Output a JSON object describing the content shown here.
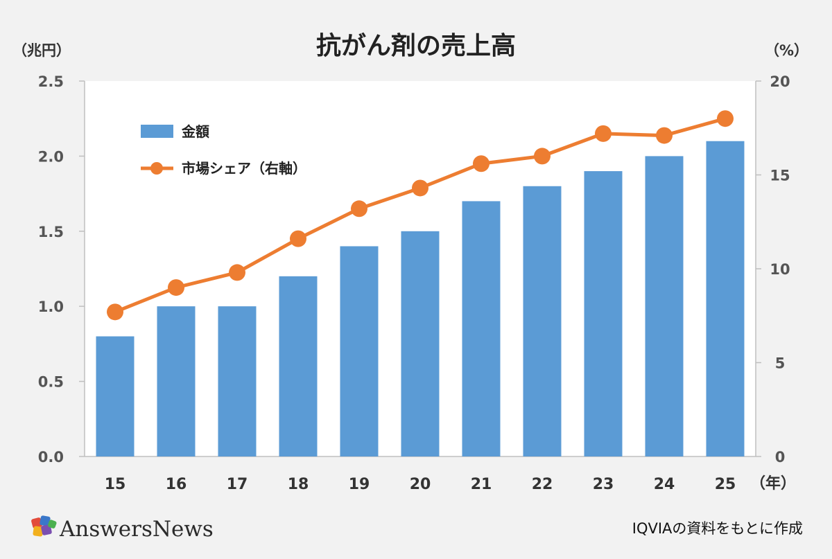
{
  "title": "抗がん剤の売上高",
  "left_unit": "（兆円）",
  "right_unit": "（%）",
  "x_unit": "（年）",
  "brand": "AnswersNews",
  "source": "IQVIAの資料をもとに作成",
  "colors": {
    "bar": "#5b9bd5",
    "line": "#ed7d31",
    "plot_bg": "#ffffff",
    "page_bg": "#f2f2f2"
  },
  "chart_data": {
    "type": "bar",
    "categories": [
      "15",
      "16",
      "17",
      "18",
      "19",
      "20",
      "21",
      "22",
      "23",
      "24",
      "25"
    ],
    "series": [
      {
        "name": "金額",
        "type": "bar",
        "axis": "left",
        "values": [
          0.8,
          1.0,
          1.0,
          1.2,
          1.4,
          1.5,
          1.7,
          1.8,
          1.9,
          2.0,
          2.1
        ]
      },
      {
        "name": "市場シェア（右軸）",
        "type": "line",
        "axis": "right",
        "values": [
          7.7,
          9.0,
          9.8,
          11.6,
          13.2,
          14.3,
          15.6,
          16.0,
          17.2,
          17.1,
          18.0
        ]
      }
    ],
    "left_axis": {
      "ylim": [
        0,
        2.5
      ],
      "ticks": [
        "0.0",
        "0.5",
        "1.0",
        "1.5",
        "2.0",
        "2.5"
      ]
    },
    "right_axis": {
      "ylim": [
        0,
        20
      ],
      "ticks": [
        "0",
        "5",
        "10",
        "15",
        "20"
      ]
    },
    "legend": "top-left",
    "grid": false
  }
}
